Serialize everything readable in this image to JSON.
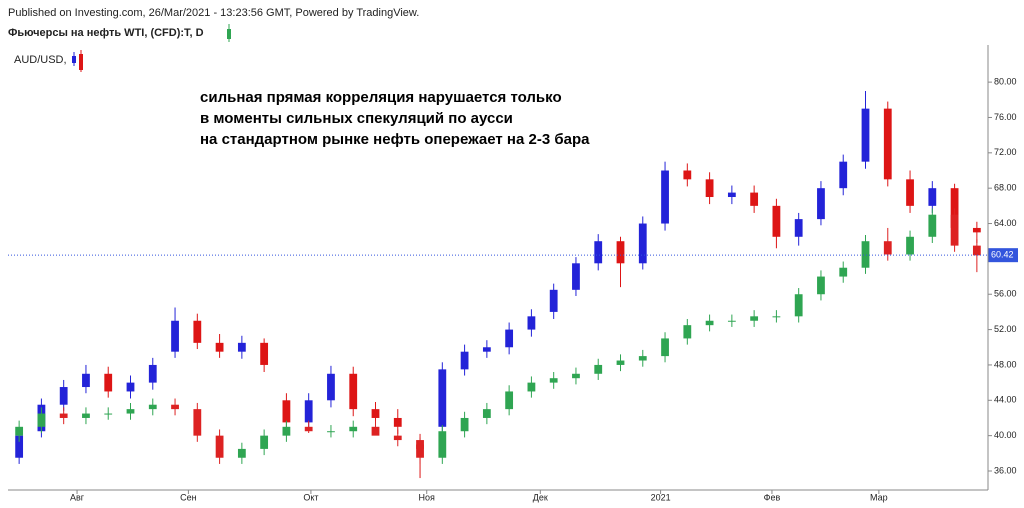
{
  "chart_data": {
    "type": "candlestick",
    "source_note": "Published on Investing.com, 26/Mar/2021 - 13:23:56 GMT, Powered by TradingView.",
    "annotation": [
      "сильная прямая корреляция нарушается только",
      "в моменты сильных спекуляций по аусси",
      "на стандартном рынке нефть опережает на 2-3 бара"
    ],
    "x": [
      0,
      1,
      2,
      3,
      4,
      5,
      6,
      7,
      8,
      9,
      10,
      11,
      12,
      13,
      14,
      15,
      16,
      17,
      18,
      19,
      20,
      21,
      22,
      23,
      24,
      25,
      26,
      27,
      28,
      29,
      30,
      31,
      32,
      33,
      34,
      35,
      36,
      37,
      38,
      39,
      40,
      41,
      42,
      43
    ],
    "xlim": [
      -0.5,
      43.5
    ],
    "xticks": [
      {
        "value": 2.6,
        "label": "Авг"
      },
      {
        "value": 7.6,
        "label": "Сен"
      },
      {
        "value": 13.1,
        "label": "Окт"
      },
      {
        "value": 18.3,
        "label": "Ноя"
      },
      {
        "value": 23.4,
        "label": "Дек"
      },
      {
        "value": 28.8,
        "label": "2021"
      },
      {
        "value": 33.8,
        "label": "Фев"
      },
      {
        "value": 38.6,
        "label": "Мар"
      }
    ],
    "ylim": [
      33.85,
      84.2
    ],
    "yticks": [
      {
        "value": 36,
        "label": "36.00"
      },
      {
        "value": 40,
        "label": "40.00"
      },
      {
        "value": 44,
        "label": "44.00"
      },
      {
        "value": 48,
        "label": "48.00"
      },
      {
        "value": 52,
        "label": "52.00"
      },
      {
        "value": 56,
        "label": "56.00"
      },
      {
        "value": 60,
        "label": "60.00"
      },
      {
        "value": 64,
        "label": "64.00"
      },
      {
        "value": 68,
        "label": "68.00"
      },
      {
        "value": 72,
        "label": "72.00"
      },
      {
        "value": 76,
        "label": "76.00"
      },
      {
        "value": 80,
        "label": "80.00"
      }
    ],
    "price_line": 60.42,
    "price_line_color": "#3355dd",
    "series": [
      {
        "name": "Фьючерсы на нефть WTI, (CFD):T, D",
        "up_color": "#2323d8",
        "down_color": "#dd1515",
        "open": [
          37.5,
          40.5,
          43.5,
          45.5,
          47,
          45,
          46,
          49.5,
          53,
          50.5,
          49.5,
          50.5,
          44,
          41.5,
          44,
          47,
          43,
          42,
          39,
          41,
          47.5,
          49.5,
          50,
          52,
          54,
          56.5,
          59.5,
          62,
          59.5,
          64,
          70,
          69,
          67,
          67.5,
          66,
          62.5,
          64.5,
          68,
          71,
          77,
          69,
          66,
          68,
          63.5
        ],
        "high": [
          40.8,
          44.2,
          46.3,
          48,
          47.8,
          46.8,
          48.8,
          54.5,
          53.8,
          51.5,
          51.3,
          51,
          44.8,
          44.8,
          47.9,
          47.8,
          43.8,
          43,
          39.8,
          48.3,
          50.3,
          50.8,
          52.8,
          54.3,
          57.2,
          60.2,
          62.8,
          62.5,
          64.8,
          71,
          70.8,
          69.8,
          68.3,
          68.3,
          66.8,
          65.2,
          68.8,
          71.8,
          79,
          77.8,
          70,
          68.8,
          68.5,
          64.2
        ],
        "low": [
          36.8,
          39.8,
          42.8,
          44.8,
          44.3,
          44.2,
          45.2,
          48.8,
          49.8,
          48.8,
          48.7,
          47.2,
          40.8,
          40.8,
          43.2,
          42.2,
          41.2,
          40.2,
          35.2,
          40.5,
          46.8,
          48.8,
          49.2,
          51.2,
          53.2,
          55.8,
          58.7,
          56.8,
          58.8,
          63.2,
          68.2,
          66.2,
          66.2,
          65.2,
          61.2,
          61.5,
          63.8,
          67.2,
          70.2,
          68.2,
          65.2,
          65.2,
          62.8,
          61.8
        ],
        "close": [
          40,
          43.5,
          45.5,
          47,
          45,
          46,
          48,
          53,
          50.5,
          49.5,
          50.5,
          48,
          41.5,
          44,
          47,
          43,
          42,
          41,
          38.5,
          47.5,
          49.5,
          50,
          52,
          53.5,
          56.5,
          59.5,
          62,
          59.5,
          64,
          70,
          69,
          67,
          67.5,
          66,
          62.5,
          64.5,
          68,
          71,
          77,
          69,
          66,
          68,
          63.5,
          63
        ]
      },
      {
        "name": "AUD/USD,",
        "up_color": "#2fa552",
        "down_color": "#dd2222",
        "open": [
          40,
          41,
          42.5,
          42,
          42.5,
          42.5,
          43,
          43.5,
          43,
          40,
          37.5,
          38.5,
          40,
          41,
          40.5,
          40.5,
          41,
          40,
          39.5,
          37.5,
          40.5,
          42,
          43,
          45,
          46,
          46.5,
          47,
          48,
          48.5,
          49,
          51,
          52.5,
          53,
          53,
          53.5,
          53.5,
          56,
          58,
          59,
          62,
          60.5,
          62.5,
          65,
          61.5
        ],
        "high": [
          41.7,
          43.2,
          43.2,
          43.2,
          43.2,
          43.7,
          44.2,
          44.2,
          43.7,
          40.7,
          39.2,
          40.7,
          41.7,
          41.7,
          41.2,
          41.7,
          41.7,
          40.7,
          40.2,
          41.2,
          42.7,
          43.7,
          45.7,
          46.7,
          47.2,
          47.7,
          48.7,
          49.2,
          49.7,
          51.7,
          53.2,
          53.7,
          53.7,
          54.2,
          54.2,
          56.7,
          58.7,
          59.7,
          62.7,
          63.5,
          63.2,
          65.7,
          65.7,
          62.2
        ],
        "low": [
          39.3,
          40.3,
          41.3,
          41.3,
          41.8,
          41.8,
          42.3,
          42.3,
          39.3,
          36.8,
          36.8,
          37.8,
          39.3,
          40.3,
          39.8,
          39.8,
          40.3,
          38.8,
          36.8,
          36.8,
          39.8,
          41.3,
          42.3,
          44.3,
          45.3,
          45.8,
          46.3,
          47.3,
          47.8,
          48.3,
          50.3,
          51.8,
          52.3,
          52.3,
          52.8,
          52.8,
          55.3,
          57.3,
          58.3,
          59.8,
          59.8,
          61.8,
          60.8,
          58.5
        ],
        "close": [
          41,
          42.5,
          42,
          42.5,
          42.5,
          43,
          43.5,
          43,
          40,
          37.5,
          38.5,
          40,
          41,
          40.5,
          40.5,
          41,
          40,
          39.5,
          37.5,
          40.5,
          42,
          43,
          45,
          46,
          46.5,
          47,
          48,
          48.5,
          49,
          51,
          52.5,
          53,
          53,
          53.5,
          53.5,
          56,
          58,
          59,
          62,
          60.5,
          62.5,
          65,
          61.5,
          60.4
        ]
      }
    ]
  }
}
